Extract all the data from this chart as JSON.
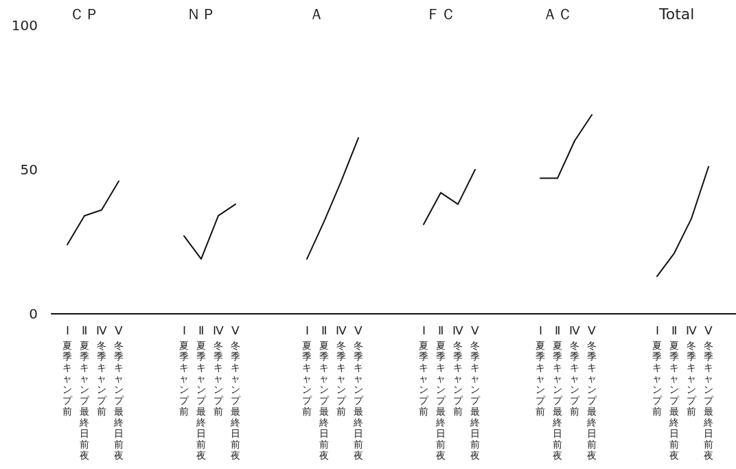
{
  "chart_data": [
    {
      "type": "line",
      "title": "ＣＰ",
      "categories": [
        "Ⅰ 夏季キャンプ前",
        "Ⅱ 夏季キャンプ最終日前夜",
        "Ⅳ 冬季キャンプ前",
        "Ⅴ 冬季キャンプ最終日前夜"
      ],
      "series": [
        {
          "color": "#111111",
          "values": [
            24,
            34,
            36,
            46
          ]
        }
      ],
      "ylim": [
        0,
        100
      ],
      "yticks": [
        0,
        50,
        100
      ],
      "marker": "none",
      "grid": false
    },
    {
      "type": "line",
      "title": "ＮＰ",
      "categories": [
        "Ⅰ 夏季キャンプ前",
        "Ⅱ 夏季キャンプ最終日前夜",
        "Ⅳ 冬季キャンプ前",
        "Ⅴ 冬季キャンプ最終日前夜"
      ],
      "series": [
        {
          "color": "#111111",
          "values": [
            27,
            19,
            34,
            38
          ]
        }
      ],
      "ylim": [
        0,
        100
      ],
      "yticks": [
        0,
        50,
        100
      ],
      "marker": "none",
      "grid": false,
      "tick_labels": "x"
    },
    {
      "type": "line",
      "title": "Ａ",
      "categories": [
        "Ⅰ 夏季キャンプ前",
        "Ⅱ 夏季キャンプ最終日前夜",
        "Ⅳ 冬季キャンプ前",
        "Ⅴ 冬季キャンプ最終日前夜"
      ],
      "series": [
        {
          "color": "#111111",
          "values": [
            19,
            32,
            46,
            61
          ]
        }
      ],
      "ylim": [
        0,
        100
      ],
      "yticks": [
        0,
        50,
        100
      ],
      "marker": "none",
      "grid": false,
      "tick_labels": "x"
    },
    {
      "type": "line",
      "title": "ＦＣ",
      "categories": [
        "Ⅰ 夏季キャンプ前",
        "Ⅱ 夏季キャンプ最終日前夜",
        "Ⅳ 冬季キャンプ前",
        "Ⅴ 冬季キャンプ最終日前夜"
      ],
      "series": [
        {
          "color": "#111111",
          "values": [
            31,
            42,
            38,
            50
          ]
        }
      ],
      "ylim": [
        0,
        100
      ],
      "yticks": [
        0,
        50,
        100
      ],
      "marker": "none",
      "grid": false,
      "tick_labels": "x"
    },
    {
      "type": "line",
      "title": "ＡＣ",
      "categories": [
        "Ⅰ 夏季キャンプ前",
        "Ⅱ 夏季キャンプ最終日前夜",
        "Ⅳ 冬季キャンプ前",
        "Ⅴ 冬季キャンプ最終日前夜"
      ],
      "series": [
        {
          "color": "#111111",
          "values": [
            47,
            47,
            60,
            69
          ]
        }
      ],
      "ylim": [
        0,
        100
      ],
      "yticks": [
        0,
        50,
        100
      ],
      "marker": "none",
      "grid": false,
      "tick_labels": "x"
    },
    {
      "type": "line",
      "title": "Total",
      "categories": [
        "Ⅰ 夏季キャンプ前",
        "Ⅱ 夏季キャンプ最終日前夜",
        "Ⅳ 冬季キャンプ前",
        "Ⅴ 冬季キャンプ最終日前夜"
      ],
      "series": [
        {
          "color": "#111111",
          "values": [
            13,
            21,
            33,
            51
          ]
        }
      ],
      "ylim": [
        0,
        100
      ],
      "yticks": [
        0,
        50,
        100
      ],
      "marker": "none",
      "grid": false,
      "tick_labels": "x"
    }
  ]
}
